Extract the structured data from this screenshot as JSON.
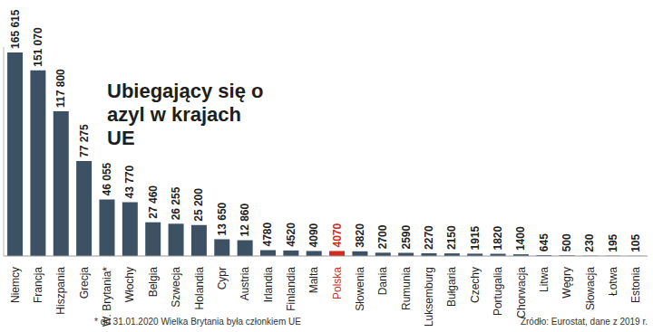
{
  "chart_data": {
    "type": "bar",
    "title": "Ubiegający się o azyl w krajach UE",
    "footnote": "* do 31.01.2020 Wielka Brytania była członkiem UE",
    "source": "Źródło: Eurostat, dane z 2019 r.",
    "categories": [
      "Niemcy",
      "Francja",
      "Hiszpania",
      "Grecja",
      "W. Brytania*",
      "Włochy",
      "Belgia",
      "Szwecja",
      "Holandia",
      "Cypr",
      "Austria",
      "Irlandia",
      "Finlandia",
      "Malta",
      "Polska",
      "Słowenia",
      "Dania",
      "Rumunia",
      "Luksemburg",
      "Bułgaria",
      "Czechy",
      "Portugalia",
      "Chorwacja",
      "Litwa",
      "Węgry",
      "Słowacja",
      "Łotwa",
      "Estonia"
    ],
    "values": [
      165615,
      151070,
      117800,
      77275,
      46055,
      43770,
      27460,
      26255,
      25200,
      13650,
      12860,
      4780,
      4520,
      4090,
      4070,
      3820,
      2700,
      2590,
      2270,
      2150,
      1915,
      1820,
      1400,
      645,
      500,
      230,
      195,
      105
    ],
    "value_labels": [
      "165 615",
      "151 070",
      "117 800",
      "77 275",
      "46 055",
      "43 770",
      "27 460",
      "26 255",
      "25 200",
      "13 650",
      "12 860",
      "4780",
      "4520",
      "4090",
      "4070",
      "3820",
      "2700",
      "2590",
      "2270",
      "2150",
      "1915",
      "1820",
      "1400",
      "645",
      "500",
      "230",
      "195",
      "105"
    ],
    "color": "#3c5264",
    "colors": [
      "#3c5264",
      "#3c5264",
      "#3c5264",
      "#3c5264",
      "#3c5264",
      "#3c5264",
      "#3c5264",
      "#3c5264",
      "#3c5264",
      "#3c5264",
      "#3c5264",
      "#3c5264",
      "#3c5264",
      "#3c5264",
      "#d42a20",
      "#3c5264",
      "#3c5264",
      "#3c5264",
      "#3c5264",
      "#3c5264",
      "#3c5264",
      "#3c5264",
      "#3c5264",
      "#3c5264",
      "#3c5264",
      "#3c5264",
      "#3c5264",
      "#3c5264"
    ],
    "ylim": [
      0,
      170000
    ],
    "grid": false,
    "data_labels": true,
    "tick_labels": "x"
  }
}
